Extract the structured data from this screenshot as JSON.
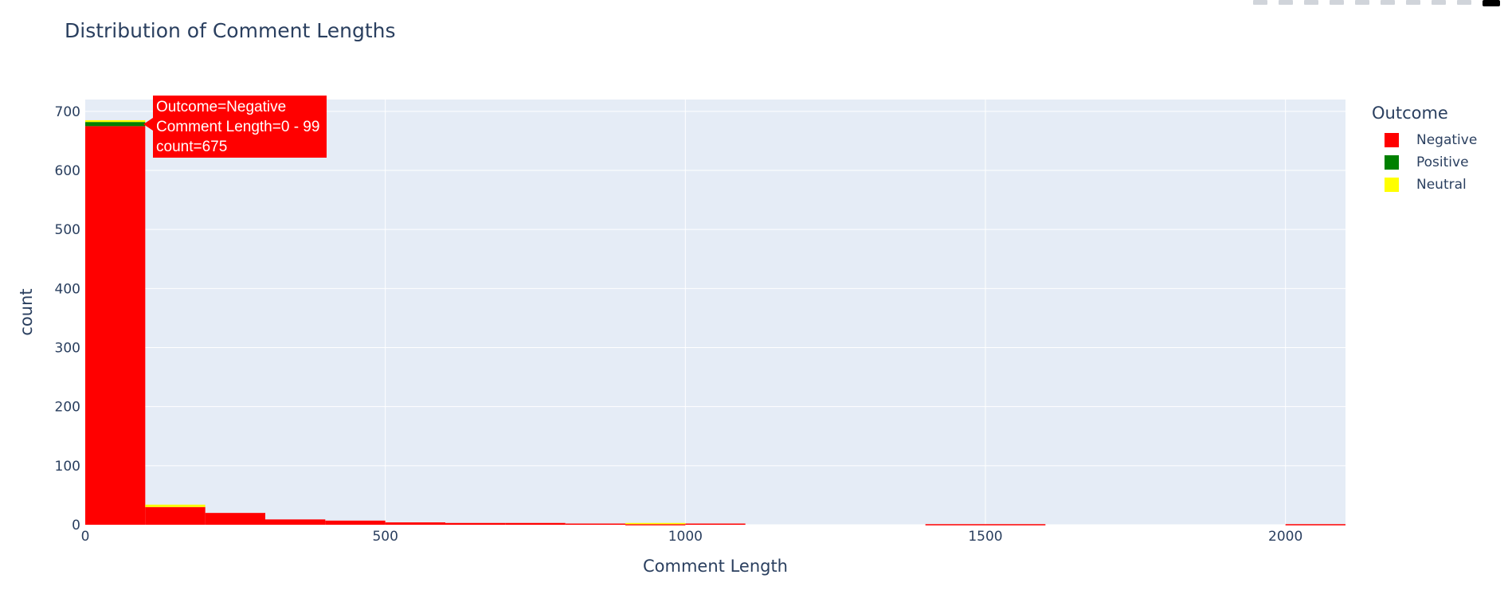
{
  "chart_data": {
    "type": "bar",
    "title": "Distribution of Comment Lengths",
    "xlabel": "Comment Length",
    "ylabel": "count",
    "bin_size": 100,
    "x_range": [
      0,
      2100
    ],
    "ylim": [
      0,
      720
    ],
    "x_ticks": [
      0,
      500,
      1000,
      1500,
      2000
    ],
    "y_ticks": [
      0,
      100,
      200,
      300,
      400,
      500,
      600,
      700
    ],
    "barmode": "stack",
    "grid": true,
    "legend": {
      "title": "Outcome",
      "placement": "right"
    },
    "bins": [
      0,
      100,
      200,
      300,
      400,
      500,
      600,
      700,
      800,
      900,
      1000,
      1100,
      1200,
      1300,
      1400,
      1500,
      1600,
      1700,
      1800,
      1900,
      2000
    ],
    "series": [
      {
        "name": "Negative",
        "color": "#ff0000",
        "values": [
          675,
          30,
          20,
          9,
          7,
          4,
          3,
          3,
          2,
          1,
          2,
          0,
          0,
          0,
          1,
          1,
          0,
          0,
          0,
          0,
          1
        ]
      },
      {
        "name": "Positive",
        "color": "#008000",
        "values": [
          7,
          0,
          0,
          0,
          0,
          0,
          0,
          0,
          0,
          0,
          0,
          0,
          0,
          0,
          0,
          0,
          0,
          0,
          0,
          0,
          0
        ]
      },
      {
        "name": "Neutral",
        "color": "#ffff00",
        "values": [
          3,
          4,
          0,
          0,
          0,
          0,
          0,
          0,
          0,
          2,
          0,
          0,
          0,
          0,
          0,
          0,
          0,
          0,
          0,
          0,
          0
        ]
      }
    ],
    "tooltip": {
      "line1": "Outcome=Negative",
      "line2": "Comment Length=0 - 99",
      "line3": "count=675"
    }
  }
}
